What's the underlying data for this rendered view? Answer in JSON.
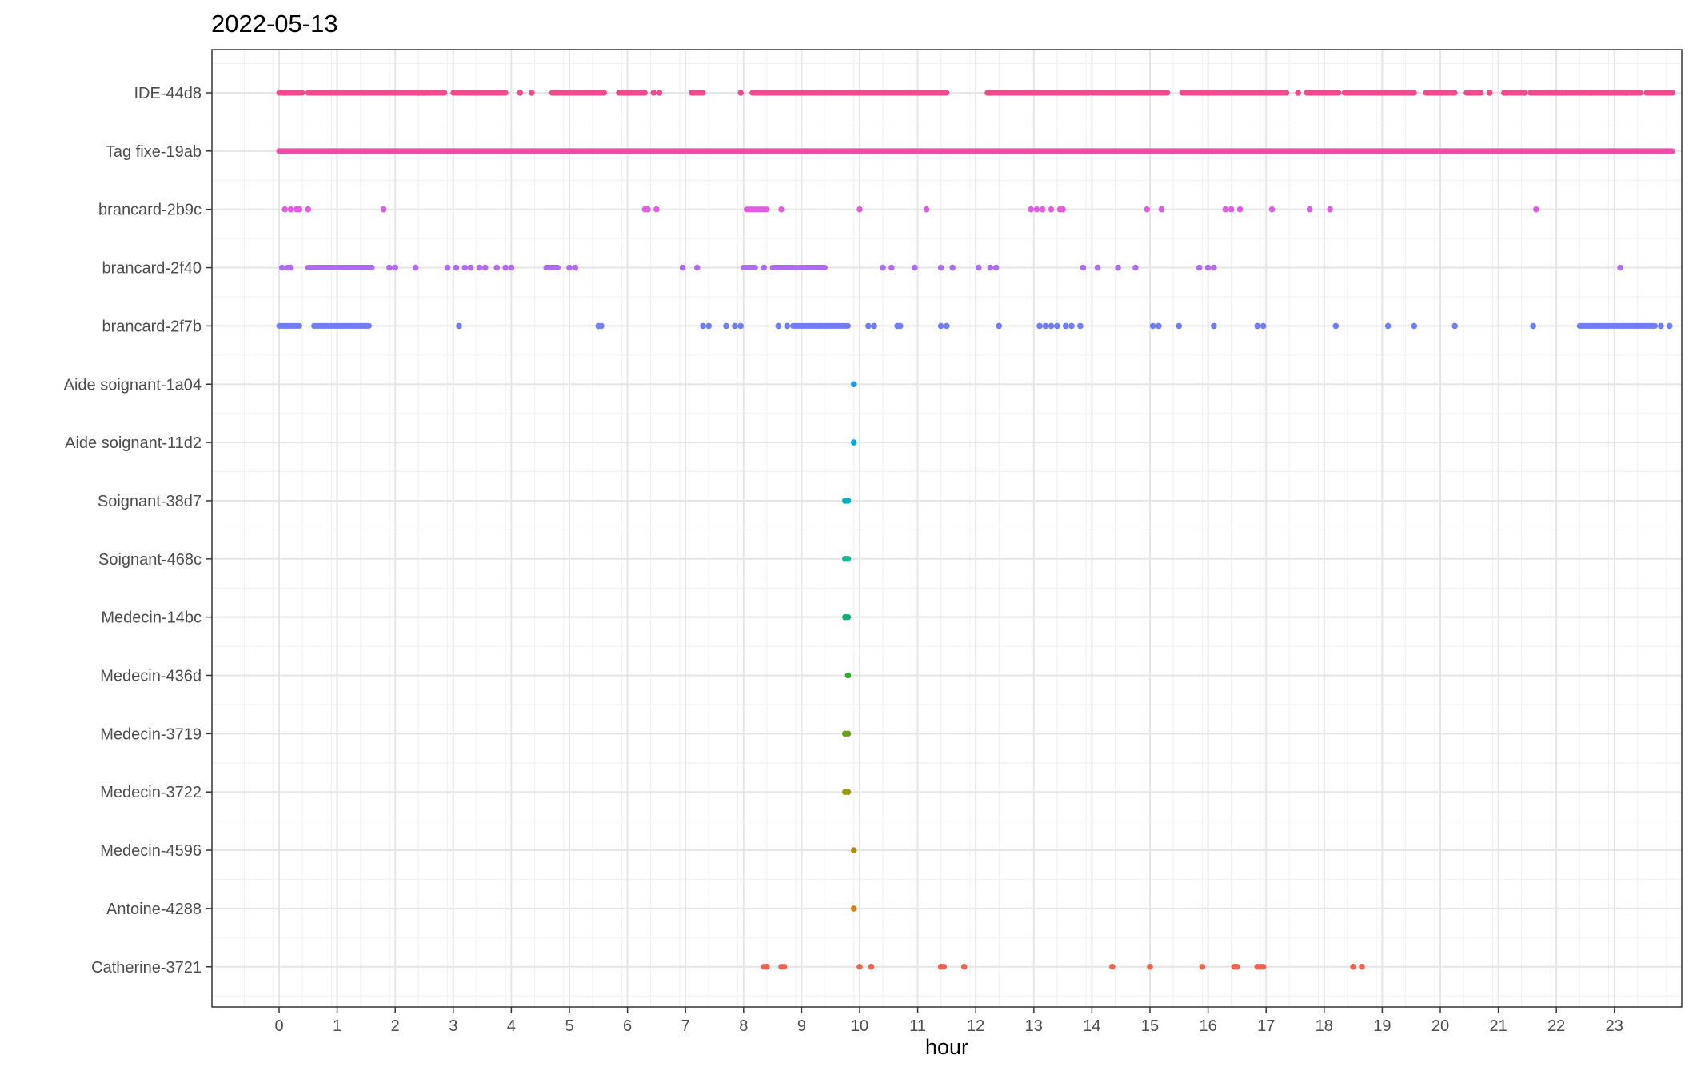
{
  "chart_data": {
    "type": "scatter",
    "title": "2022-05-13",
    "xlabel": "hour",
    "ylabel": "",
    "xlim": [
      -0.6,
      24.0
    ],
    "x_ticks": [
      0,
      1,
      2,
      3,
      4,
      5,
      6,
      7,
      8,
      9,
      10,
      11,
      12,
      13,
      14,
      15,
      16,
      17,
      18,
      19,
      20,
      21,
      22,
      23
    ],
    "grid": true,
    "legend": "none",
    "series": [
      {
        "name": "IDE-44d8",
        "color": "#f8766d",
        "color_actual": "#f5498f",
        "continuous_ranges": [
          [
            0.0,
            0.4
          ],
          [
            0.5,
            2.85
          ],
          [
            3.0,
            3.9
          ],
          [
            4.7,
            5.6
          ],
          [
            5.85,
            6.3
          ],
          [
            7.1,
            7.3
          ],
          [
            8.15,
            11.5
          ],
          [
            12.2,
            13.95
          ],
          [
            14.0,
            15.3
          ],
          [
            15.55,
            17.35
          ],
          [
            17.7,
            18.25
          ],
          [
            18.35,
            19.55
          ],
          [
            19.75,
            20.25
          ],
          [
            20.45,
            20.7
          ],
          [
            21.2,
            21.4
          ],
          [
            21.55,
            23.45
          ],
          [
            23.55,
            24.0
          ]
        ],
        "points": [
          0.1,
          2.4,
          2.5,
          4.15,
          4.35,
          6.45,
          6.55,
          7.95,
          16.0,
          17.55,
          20.85,
          21.1,
          21.15,
          21.45,
          22.1,
          22.6,
          23.2
        ]
      },
      {
        "name": "Tag fixe-19ab",
        "color": "#f14ba9",
        "continuous_ranges": [
          [
            0.0,
            24.0
          ]
        ],
        "points": []
      },
      {
        "name": "brancard-2b9c",
        "color": "#e25be3",
        "continuous_ranges": [
          [
            8.05,
            8.4
          ]
        ],
        "points": [
          0.1,
          0.2,
          0.3,
          0.35,
          0.5,
          1.8,
          6.3,
          6.35,
          6.5,
          8.65,
          10.0,
          11.15,
          12.95,
          13.05,
          13.15,
          13.3,
          13.45,
          13.5,
          14.95,
          15.2,
          16.3,
          16.4,
          16.55,
          17.1,
          17.75,
          18.1,
          21.65
        ]
      },
      {
        "name": "brancard-2f40",
        "color": "#b06cf0",
        "continuous_ranges": [
          [
            0.5,
            1.6
          ],
          [
            4.6,
            4.8
          ],
          [
            8.0,
            8.2
          ],
          [
            8.5,
            8.9
          ],
          [
            8.95,
            9.4
          ]
        ],
        "points": [
          0.05,
          0.15,
          0.2,
          1.9,
          2.0,
          2.35,
          2.9,
          3.05,
          3.2,
          3.3,
          3.45,
          3.55,
          3.75,
          3.9,
          4.0,
          5.0,
          5.1,
          6.95,
          7.2,
          8.35,
          10.4,
          10.55,
          10.95,
          11.4,
          11.6,
          12.05,
          12.25,
          12.35,
          13.85,
          14.1,
          14.45,
          14.75,
          15.85,
          16.0,
          16.1,
          23.1
        ]
      },
      {
        "name": "brancard-2f7b",
        "color": "#717df4",
        "continuous_ranges": [
          [
            0.0,
            0.35
          ],
          [
            0.6,
            1.55
          ],
          [
            8.85,
            9.8
          ],
          [
            22.4,
            23.7
          ]
        ],
        "points": [
          3.1,
          5.5,
          5.55,
          7.3,
          7.4,
          7.7,
          7.85,
          7.95,
          8.6,
          8.75,
          10.15,
          10.25,
          10.65,
          10.7,
          11.4,
          11.5,
          12.4,
          13.1,
          13.2,
          13.3,
          13.4,
          13.55,
          13.65,
          13.8,
          15.05,
          15.15,
          15.5,
          16.1,
          16.85,
          16.95,
          18.2,
          19.1,
          19.55,
          20.25,
          21.6,
          23.8,
          23.95
        ]
      },
      {
        "name": "Aide soignant-1a04",
        "color": "#1b9bef",
        "continuous_ranges": [],
        "points": [
          9.9
        ]
      },
      {
        "name": "Aide soignant-11d2",
        "color": "#00a9e0",
        "continuous_ranges": [],
        "points": [
          9.9
        ]
      },
      {
        "name": "Soignant-38d7",
        "color": "#00b0c0",
        "continuous_ranges": [],
        "points": [
          9.75,
          9.8
        ]
      },
      {
        "name": "Soignant-468c",
        "color": "#17b693",
        "continuous_ranges": [],
        "points": [
          9.75,
          9.8
        ]
      },
      {
        "name": "Medecin-14bc",
        "color": "#12b26e",
        "continuous_ranges": [],
        "points": [
          9.75,
          9.8
        ]
      },
      {
        "name": "Medecin-436d",
        "color": "#2eae28",
        "continuous_ranges": [],
        "points": [
          9.8
        ]
      },
      {
        "name": "Medecin-3719",
        "color": "#67a31f",
        "continuous_ranges": [],
        "points": [
          9.75,
          9.8
        ]
      },
      {
        "name": "Medecin-3722",
        "color": "#9a9a00",
        "continuous_ranges": [],
        "points": [
          9.75,
          9.8
        ]
      },
      {
        "name": "Medecin-4596",
        "color": "#bc8a10",
        "continuous_ranges": [],
        "points": [
          9.9
        ]
      },
      {
        "name": "Antoine-4288",
        "color": "#d9800c",
        "continuous_ranges": [],
        "points": [
          9.9
        ]
      },
      {
        "name": "Catherine-3721",
        "color": "#ee6450",
        "continuous_ranges": [],
        "points": [
          8.35,
          8.4,
          8.65,
          8.7,
          10.0,
          10.2,
          11.4,
          11.45,
          11.8,
          14.35,
          15.0,
          15.9,
          16.45,
          16.5,
          16.85,
          16.9,
          16.95,
          18.5,
          18.65
        ]
      }
    ]
  }
}
